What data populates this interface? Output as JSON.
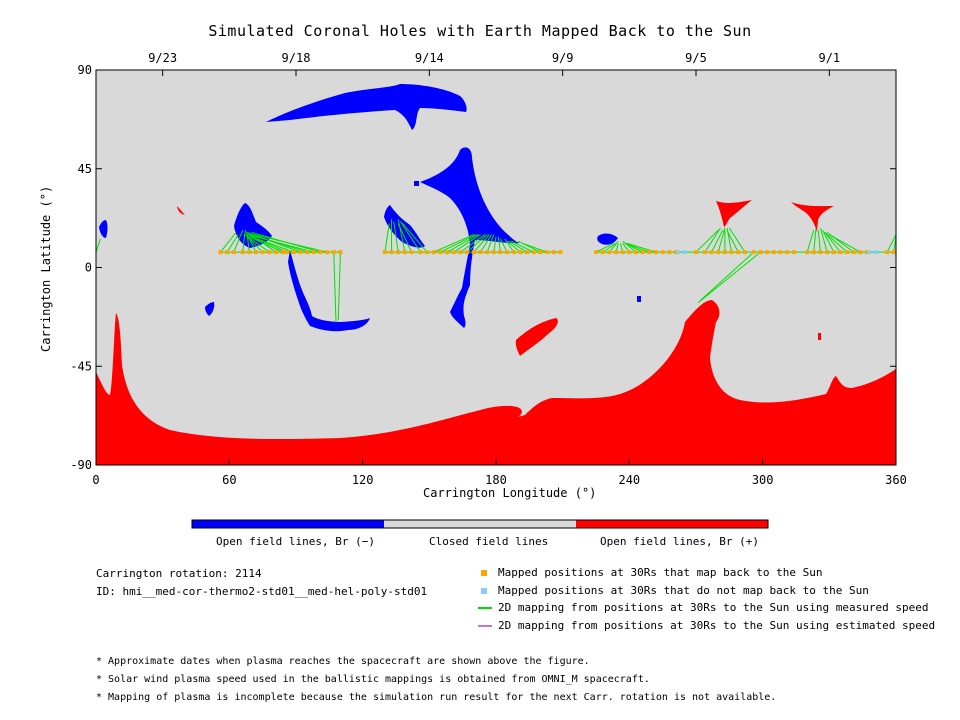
{
  "chart_data": {
    "type": "heatmap",
    "title": "Simulated Coronal Holes with Earth Mapped Back to the Sun",
    "xlabel": "Carrington Longitude (°)",
    "ylabel": "Carrington Latitude (°)",
    "xlim": [
      0,
      360
    ],
    "ylim": [
      -90,
      90
    ],
    "x_ticks": [
      "0",
      "60",
      "120",
      "180",
      "240",
      "300",
      "360"
    ],
    "y_ticks": [
      "90",
      "45",
      "0",
      "-45",
      "-90"
    ],
    "x_tick_values": [
      0,
      60,
      120,
      180,
      240,
      300,
      360
    ],
    "y_tick_values": [
      90,
      45,
      0,
      -45,
      -90
    ],
    "top_axis_dates": [
      {
        "label": "9/23",
        "lon": 30
      },
      {
        "label": "9/18",
        "lon": 90
      },
      {
        "label": "9/14",
        "lon": 150
      },
      {
        "label": "9/9",
        "lon": 210
      },
      {
        "label": "9/5",
        "lon": 270
      },
      {
        "label": "9/1",
        "lon": 330
      }
    ],
    "colorbar": [
      {
        "label": "Open field lines, Br (−)",
        "color": "#0000ff"
      },
      {
        "label": "Closed field lines",
        "color": "#d9d9d9"
      },
      {
        "label": "Open field lines, Br (+)",
        "color": "#ff0000"
      }
    ],
    "colors": {
      "negative": "#0000ff",
      "closed": "#d9d9d9",
      "positive": "#ff0000",
      "mapped": "#ffa500",
      "not_mapped": "#87cefa",
      "measured": "#00e000",
      "estimated": "#b57edc"
    },
    "mapped_positions_lat": 7,
    "mapped_lons": [
      56,
      59,
      62,
      66,
      69,
      72,
      75,
      78,
      81,
      84,
      86,
      89,
      92,
      95,
      98,
      101,
      104,
      107,
      110,
      130,
      133,
      136,
      139,
      142,
      146,
      149,
      152,
      155,
      158,
      161,
      164,
      167,
      170,
      173,
      176,
      179,
      182,
      185,
      188,
      191,
      194,
      197,
      200,
      203,
      206,
      209,
      225,
      228,
      231,
      234,
      237,
      240,
      243,
      246,
      249,
      252,
      255,
      258,
      261,
      270,
      274,
      277,
      280,
      283,
      286,
      289,
      292,
      296,
      299,
      302,
      305,
      308,
      311,
      314,
      320,
      323,
      326,
      329,
      332,
      335,
      338,
      341,
      344,
      347,
      356,
      359
    ],
    "unmapped_lons": [
      262,
      265,
      348,
      351
    ],
    "mappings": [
      {
        "from": [
          56,
          7
        ],
        "to": [
          63,
          16
        ]
      },
      {
        "from": [
          59,
          7
        ],
        "to": [
          64,
          15
        ]
      },
      {
        "from": [
          62,
          7
        ],
        "to": [
          66,
          17
        ]
      },
      {
        "from": [
          66,
          7
        ],
        "to": [
          67,
          16
        ]
      },
      {
        "from": [
          69,
          7
        ],
        "to": [
          68,
          15
        ]
      },
      {
        "from": [
          72,
          7
        ],
        "to": [
          67,
          17
        ]
      },
      {
        "from": [
          75,
          7
        ],
        "to": [
          68,
          14
        ]
      },
      {
        "from": [
          78,
          7
        ],
        "to": [
          67,
          15
        ]
      },
      {
        "from": [
          81,
          7
        ],
        "to": [
          68,
          16
        ]
      },
      {
        "from": [
          84,
          7
        ],
        "to": [
          69,
          14
        ]
      },
      {
        "from": [
          86,
          7
        ],
        "to": [
          68,
          15
        ]
      },
      {
        "from": [
          89,
          7
        ],
        "to": [
          70,
          14
        ]
      },
      {
        "from": [
          92,
          7
        ],
        "to": [
          68,
          16
        ]
      },
      {
        "from": [
          95,
          7
        ],
        "to": [
          70,
          15
        ]
      },
      {
        "from": [
          98,
          7
        ],
        "to": [
          68,
          15
        ]
      },
      {
        "from": [
          101,
          7
        ],
        "to": [
          70,
          16
        ]
      },
      {
        "from": [
          104,
          7
        ],
        "to": [
          71,
          15
        ]
      },
      {
        "from": [
          107,
          7
        ],
        "to": [
          108,
          -25
        ]
      },
      {
        "from": [
          110,
          7
        ],
        "to": [
          109,
          -24
        ]
      },
      {
        "from": [
          130,
          7
        ],
        "to": [
          132,
          20
        ]
      },
      {
        "from": [
          133,
          7
        ],
        "to": [
          133,
          22
        ]
      },
      {
        "from": [
          136,
          7
        ],
        "to": [
          134,
          21
        ]
      },
      {
        "from": [
          139,
          7
        ],
        "to": [
          136,
          22
        ]
      },
      {
        "from": [
          142,
          7
        ],
        "to": [
          136,
          20
        ]
      },
      {
        "from": [
          146,
          7
        ],
        "to": [
          137,
          21
        ]
      },
      {
        "from": [
          149,
          7
        ],
        "to": [
          138,
          20
        ]
      },
      {
        "from": [
          152,
          7
        ],
        "to": [
          170,
          15
        ]
      },
      {
        "from": [
          155,
          7
        ],
        "to": [
          171,
          15
        ]
      },
      {
        "from": [
          158,
          7
        ],
        "to": [
          172,
          15
        ]
      },
      {
        "from": [
          161,
          7
        ],
        "to": [
          173,
          15
        ]
      },
      {
        "from": [
          164,
          7
        ],
        "to": [
          175,
          15
        ]
      },
      {
        "from": [
          167,
          7
        ],
        "to": [
          176,
          15
        ]
      },
      {
        "from": [
          170,
          7
        ],
        "to": [
          177,
          15
        ]
      },
      {
        "from": [
          173,
          7
        ],
        "to": [
          178,
          15
        ]
      },
      {
        "from": [
          176,
          7
        ],
        "to": [
          179,
          15
        ]
      },
      {
        "from": [
          179,
          7
        ],
        "to": [
          180,
          14
        ]
      },
      {
        "from": [
          182,
          7
        ],
        "to": [
          181,
          14
        ]
      },
      {
        "from": [
          185,
          7
        ],
        "to": [
          182,
          13
        ]
      },
      {
        "from": [
          188,
          7
        ],
        "to": [
          184,
          13
        ]
      },
      {
        "from": [
          191,
          7
        ],
        "to": [
          185,
          12
        ]
      },
      {
        "from": [
          194,
          7
        ],
        "to": [
          186,
          12
        ]
      },
      {
        "from": [
          197,
          7
        ],
        "to": [
          187,
          12
        ]
      },
      {
        "from": [
          200,
          7
        ],
        "to": [
          190,
          12
        ]
      },
      {
        "from": [
          203,
          7
        ],
        "to": [
          192,
          11
        ]
      },
      {
        "from": [
          225,
          7
        ],
        "to": [
          233,
          11
        ]
      },
      {
        "from": [
          228,
          7
        ],
        "to": [
          234,
          11
        ]
      },
      {
        "from": [
          231,
          7
        ],
        "to": [
          235,
          12
        ]
      },
      {
        "from": [
          234,
          7
        ],
        "to": [
          235,
          11
        ]
      },
      {
        "from": [
          237,
          7
        ],
        "to": [
          236,
          11
        ]
      },
      {
        "from": [
          240,
          7
        ],
        "to": [
          237,
          11
        ]
      },
      {
        "from": [
          243,
          7
        ],
        "to": [
          237,
          12
        ]
      },
      {
        "from": [
          246,
          7
        ],
        "to": [
          238,
          11
        ]
      },
      {
        "from": [
          249,
          7
        ],
        "to": [
          238,
          11
        ]
      },
      {
        "from": [
          252,
          7
        ],
        "to": [
          239,
          11
        ]
      },
      {
        "from": [
          270,
          7
        ],
        "to": [
          280,
          17
        ]
      },
      {
        "from": [
          274,
          7
        ],
        "to": [
          281,
          18
        ]
      },
      {
        "from": [
          277,
          7
        ],
        "to": [
          282,
          17
        ]
      },
      {
        "from": [
          280,
          7
        ],
        "to": [
          283,
          18
        ]
      },
      {
        "from": [
          283,
          7
        ],
        "to": [
          283,
          17
        ]
      },
      {
        "from": [
          286,
          7
        ],
        "to": [
          284,
          18
        ]
      },
      {
        "from": [
          289,
          7
        ],
        "to": [
          284,
          17
        ]
      },
      {
        "from": [
          292,
          7
        ],
        "to": [
          285,
          18
        ]
      },
      {
        "from": [
          296,
          7
        ],
        "to": [
          272,
          -15
        ]
      },
      {
        "from": [
          299,
          7
        ],
        "to": [
          271,
          -16
        ]
      },
      {
        "from": [
          320,
          7
        ],
        "to": [
          323,
          17
        ]
      },
      {
        "from": [
          323,
          7
        ],
        "to": [
          324,
          18
        ]
      },
      {
        "from": [
          326,
          7
        ],
        "to": [
          325,
          17
        ]
      },
      {
        "from": [
          329,
          7
        ],
        "to": [
          326,
          18
        ]
      },
      {
        "from": [
          332,
          7
        ],
        "to": [
          327,
          17
        ]
      },
      {
        "from": [
          335,
          7
        ],
        "to": [
          328,
          16
        ]
      },
      {
        "from": [
          338,
          7
        ],
        "to": [
          328,
          16
        ]
      },
      {
        "from": [
          341,
          7
        ],
        "to": [
          329,
          16
        ]
      },
      {
        "from": [
          344,
          7
        ],
        "to": [
          330,
          15
        ]
      },
      {
        "from": [
          356,
          7
        ],
        "to": [
          360,
          15
        ]
      },
      {
        "from": [
          359,
          7
        ],
        "to": [
          360,
          14
        ]
      },
      {
        "from": [
          0,
          7
        ],
        "to": [
          2,
          13
        ]
      }
    ]
  },
  "info": {
    "rotation": "Carrington rotation: 2114",
    "model_id": "ID: hmi__med-cor-thermo2-std01__med-hel-poly-std01"
  },
  "legend": {
    "mapped": "Mapped positions at 30Rs that map back to the Sun",
    "not_mapped": "Mapped positions at 30Rs that do not map back to the Sun",
    "measured": "2D mapping from positions at 30Rs to the Sun using measured speed",
    "estimated": "2D mapping from positions at 30Rs to the Sun using estimated speed"
  },
  "notes": [
    "* Approximate dates when plasma reaches the spacecraft are shown above the figure.",
    "* Solar wind plasma speed used in the ballistic mappings is obtained from OMNI_M spacecraft.",
    "* Mapping of plasma is incomplete because the simulation run result for the next Carr. rotation is not available."
  ]
}
